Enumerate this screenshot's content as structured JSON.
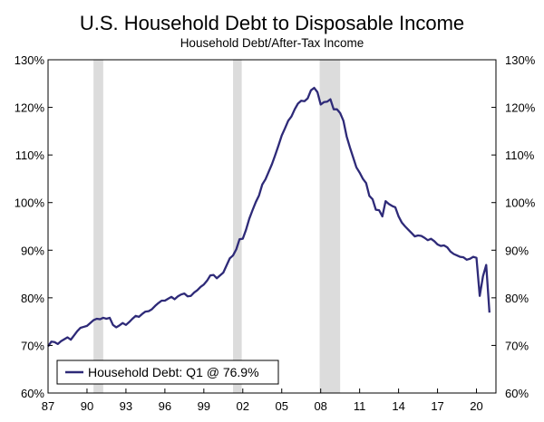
{
  "chart_data": {
    "type": "line",
    "title": "U.S. Household Debt to Disposable Income",
    "subtitle": "Household Debt/After-Tax Income",
    "xlabel": "",
    "ylabel": "",
    "xlim": [
      1987.0,
      2021.5
    ],
    "ylim": [
      60,
      130
    ],
    "y_ticks": [
      60,
      70,
      80,
      90,
      100,
      110,
      120,
      130
    ],
    "y_tick_labels": [
      "60%",
      "70%",
      "80%",
      "90%",
      "100%",
      "110%",
      "120%",
      "130%"
    ],
    "x_ticks": [
      1987,
      1990,
      1993,
      1996,
      1999,
      2002,
      2005,
      2008,
      2011,
      2014,
      2017,
      2020
    ],
    "x_tick_labels": [
      "87",
      "90",
      "93",
      "96",
      "99",
      "02",
      "05",
      "08",
      "11",
      "14",
      "17",
      "20"
    ],
    "recessions": [
      [
        1990.5,
        1991.25
      ],
      [
        2001.25,
        2001.92
      ],
      [
        2007.92,
        2009.5
      ]
    ],
    "grid": false,
    "legend_position": "bottom-left",
    "colors": {
      "line": "#2e2a78",
      "recession": "#dcdcdc",
      "axis": "#000000"
    },
    "series": [
      {
        "name": "Household Debt: Q1 @ 76.9%",
        "x": [
          1987.0,
          1987.25,
          1987.5,
          1987.75,
          1988.0,
          1988.25,
          1988.5,
          1988.75,
          1989.0,
          1989.25,
          1989.5,
          1989.75,
          1990.0,
          1990.25,
          1990.5,
          1990.75,
          1991.0,
          1991.25,
          1991.5,
          1991.75,
          1992.0,
          1992.25,
          1992.5,
          1992.75,
          1993.0,
          1993.25,
          1993.5,
          1993.75,
          1994.0,
          1994.25,
          1994.5,
          1994.75,
          1995.0,
          1995.25,
          1995.5,
          1995.75,
          1996.0,
          1996.25,
          1996.5,
          1996.75,
          1997.0,
          1997.25,
          1997.5,
          1997.75,
          1998.0,
          1998.25,
          1998.5,
          1998.75,
          1999.0,
          1999.25,
          1999.5,
          1999.75,
          2000.0,
          2000.25,
          2000.5,
          2000.75,
          2001.0,
          2001.25,
          2001.5,
          2001.75,
          2002.0,
          2002.25,
          2002.5,
          2002.75,
          2003.0,
          2003.25,
          2003.5,
          2003.75,
          2004.0,
          2004.25,
          2004.5,
          2004.75,
          2005.0,
          2005.25,
          2005.5,
          2005.75,
          2006.0,
          2006.25,
          2006.5,
          2006.75,
          2007.0,
          2007.25,
          2007.5,
          2007.75,
          2008.0,
          2008.25,
          2008.5,
          2008.75,
          2009.0,
          2009.25,
          2009.5,
          2009.75,
          2010.0,
          2010.25,
          2010.5,
          2010.75,
          2011.0,
          2011.25,
          2011.5,
          2011.75,
          2012.0,
          2012.25,
          2012.5,
          2012.75,
          2013.0,
          2013.25,
          2013.5,
          2013.75,
          2014.0,
          2014.25,
          2014.5,
          2014.75,
          2015.0,
          2015.25,
          2015.5,
          2015.75,
          2016.0,
          2016.25,
          2016.5,
          2016.75,
          2017.0,
          2017.25,
          2017.5,
          2017.75,
          2018.0,
          2018.25,
          2018.5,
          2018.75,
          2019.0,
          2019.25,
          2019.5,
          2019.75,
          2020.0,
          2020.25,
          2020.5,
          2020.75,
          2021.0
        ],
        "values": [
          69.8,
          70.8,
          70.7,
          70.3,
          70.9,
          71.3,
          71.7,
          71.2,
          72.1,
          73.0,
          73.7,
          73.9,
          74.1,
          74.7,
          75.3,
          75.6,
          75.5,
          75.8,
          75.6,
          75.8,
          74.3,
          73.8,
          74.2,
          74.7,
          74.3,
          74.9,
          75.6,
          76.2,
          76.0,
          76.6,
          77.1,
          77.2,
          77.6,
          78.3,
          78.9,
          79.4,
          79.4,
          79.8,
          80.2,
          79.7,
          80.3,
          80.7,
          80.9,
          80.3,
          80.4,
          81.1,
          81.6,
          82.3,
          82.8,
          83.6,
          84.7,
          84.8,
          84.1,
          84.7,
          85.3,
          86.8,
          88.3,
          88.9,
          90.2,
          92.3,
          92.4,
          94.3,
          96.6,
          98.4,
          100.1,
          101.5,
          103.8,
          104.9,
          106.5,
          108.1,
          110.0,
          112.0,
          114.1,
          115.6,
          117.2,
          118.1,
          119.6,
          120.8,
          121.4,
          121.3,
          121.9,
          123.6,
          124.1,
          123.2,
          120.6,
          121.1,
          121.2,
          121.7,
          119.6,
          119.6,
          118.8,
          117.2,
          113.9,
          111.6,
          109.5,
          107.4,
          106.3,
          105.0,
          104.1,
          101.4,
          100.7,
          98.5,
          98.4,
          97.1,
          100.3,
          99.7,
          99.3,
          99.0,
          97.1,
          95.8,
          95.0,
          94.3,
          93.6,
          92.9,
          93.1,
          93.0,
          92.6,
          92.1,
          92.4,
          91.9,
          91.2,
          90.9,
          91.0,
          90.6,
          89.7,
          89.2,
          88.9,
          88.6,
          88.5,
          88.0,
          88.2,
          88.6,
          88.4,
          80.4,
          84.5,
          86.9,
          76.9
        ]
      }
    ]
  }
}
